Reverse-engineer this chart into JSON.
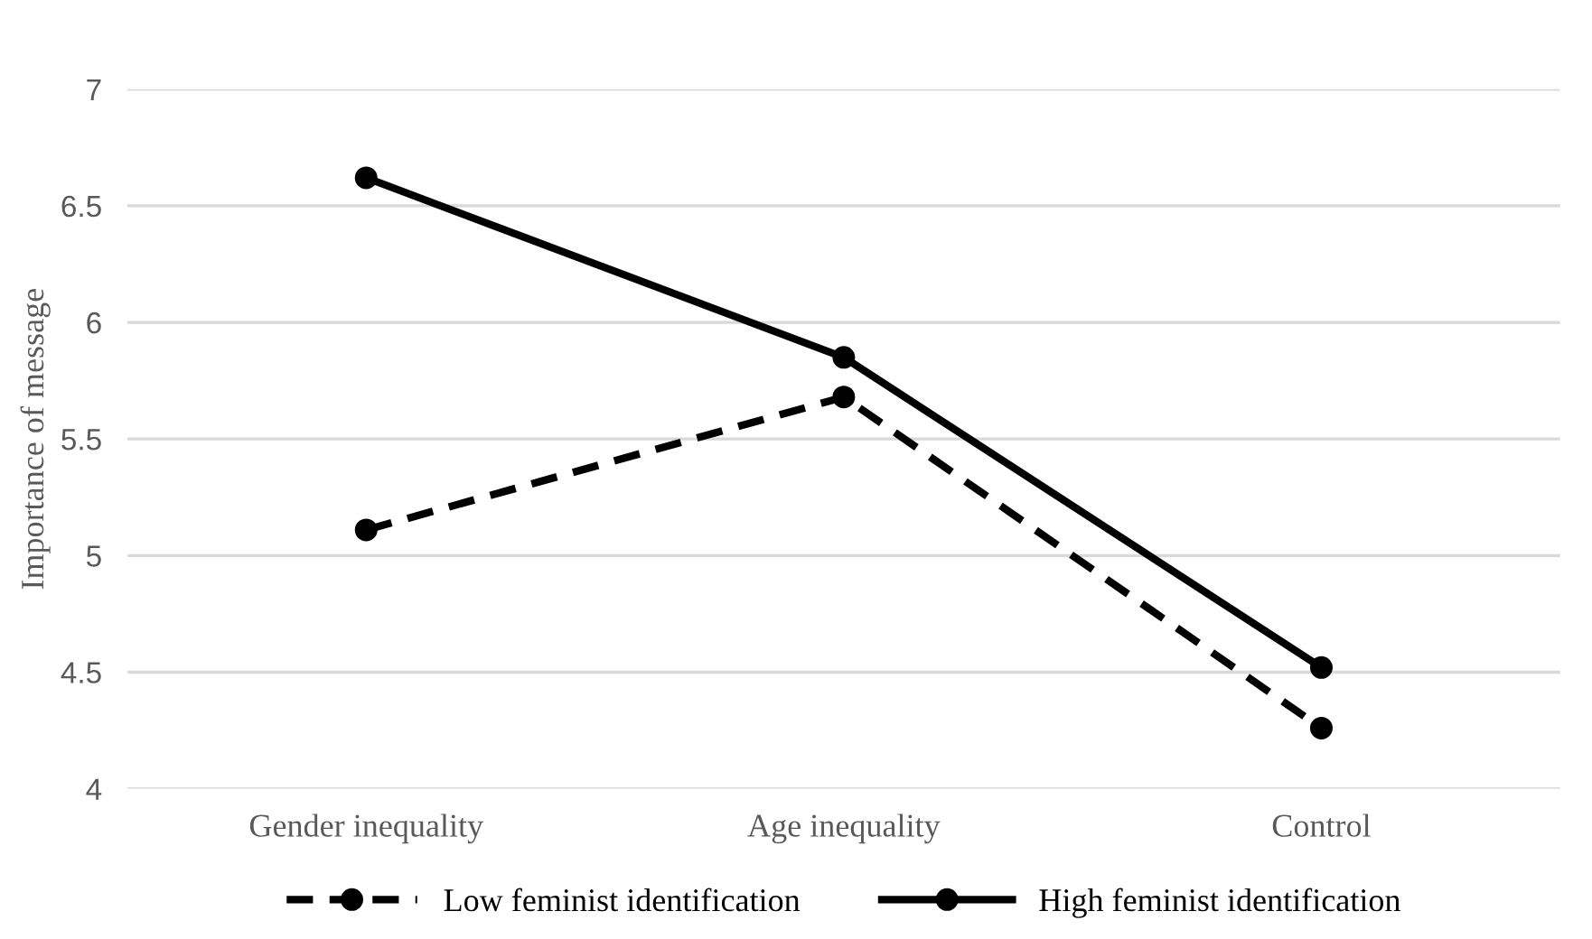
{
  "chart_data": {
    "type": "line",
    "ylabel": "Importance of message",
    "categories": [
      "Gender inequality",
      "Age inequality",
      "Control"
    ],
    "series": [
      {
        "name": "Low feminist identification",
        "color": "#000000",
        "values": [
          5.11,
          5.68,
          4.26
        ],
        "line_style": "dashed"
      },
      {
        "name": "High feminist identification",
        "color": "#000000",
        "values": [
          6.62,
          5.85,
          4.52
        ],
        "line_style": "solid"
      }
    ],
    "ylim": [
      4,
      7
    ],
    "yticks": [
      4,
      4.5,
      5,
      5.5,
      6,
      6.5,
      7
    ],
    "grid": "y",
    "legend": "bottom",
    "marker": "circle"
  }
}
